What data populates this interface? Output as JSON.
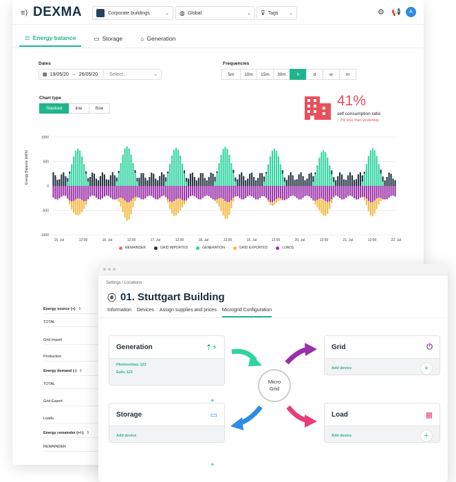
{
  "app": {
    "logo": "DEXMA",
    "menu_glyph": "≡⟩"
  },
  "topbar": {
    "building_select": "Corporate buildings",
    "region_select": "Global",
    "tags_select": "Tags",
    "avatar": "A",
    "icons": [
      "settings-gear-icon",
      "megaphone-icon"
    ]
  },
  "tabs": [
    {
      "label": "Energy balance",
      "icon": "⚖",
      "active": true
    },
    {
      "label": "Storage",
      "icon": "▭",
      "active": false
    },
    {
      "label": "Generation",
      "icon": "⌂",
      "active": false
    }
  ],
  "controls": {
    "dates_label": "Dates",
    "date_from": "19/05/20",
    "date_arrow": "→",
    "date_to": "26/05/20",
    "compare_placeholder": "Select...",
    "frequencies_label": "Frequencies",
    "frequencies": [
      "5m",
      "10m",
      "15m",
      "30m",
      "h",
      "d",
      "w",
      "m"
    ],
    "frequency_selected": "h",
    "chart_type_label": "Chart type",
    "chart_types": [
      "Stacked",
      "line",
      "flow"
    ],
    "chart_type_selected": "Stacked"
  },
  "kpi": {
    "value": "41%",
    "label": "self consumption ratio",
    "delta": "↓ 2% less than yesterday",
    "color": "#e8505b"
  },
  "chart_data": {
    "type": "bar",
    "ylabel": "Energy Balance (kWh)",
    "ylim": [
      -1000,
      1000
    ],
    "yticks": [
      "1000",
      "500",
      "0",
      "-500",
      "-1000"
    ],
    "xticks": [
      "15. Jul",
      "12:00",
      "16. Jul",
      "12:00",
      "17. Jul",
      "12:00",
      "18. Jul",
      "12:00",
      "19. Jul",
      "12:00",
      "20. Jul",
      "12:00",
      "21. Jul",
      "12:00",
      "22. Jul"
    ],
    "grid": true,
    "legend_position": "bottom",
    "hours_per_day": 24,
    "days": 7,
    "series": [
      {
        "name": "REMAINDER",
        "color": "#f06a7a"
      },
      {
        "name": "GRID IMPORTED",
        "color": "#1f2f3e"
      },
      {
        "name": "GENERATION",
        "color": "#2fd39f"
      },
      {
        "name": "GRID EXPORTED",
        "color": "#f5b942"
      },
      {
        "name": "LOADS",
        "color": "#9a2fa8"
      }
    ],
    "daily_peak_generation": [
      760,
      810,
      780,
      800,
      760,
      730,
      770
    ],
    "daily_peak_export": [
      -340,
      -380,
      -330,
      -360,
      -80,
      -330,
      -290
    ],
    "night_grid_import": 280,
    "night_loads": -280
  },
  "table": {
    "rows": [
      {
        "label": "Energy source (+)",
        "head": true,
        "sort": "⇕"
      },
      {
        "label": "TOTAL"
      },
      {
        "label": "Grid import"
      },
      {
        "label": "Production"
      },
      {
        "label": "Energy demand (-)",
        "head": true,
        "sort": "⇕"
      },
      {
        "label": "TOTAL"
      },
      {
        "label": "Grid Export"
      },
      {
        "label": "Loads"
      },
      {
        "label": "Energy remainder (+/-)",
        "head": true,
        "sort": "⇕"
      },
      {
        "label": "REMAINDER"
      }
    ]
  },
  "building": {
    "breadcrumb": "Settings  /  Locations",
    "title": "01. Stuttgart Building",
    "tabs": [
      "Information",
      "Devices",
      "Assign supplies and prices",
      "Microgrid Configuration"
    ],
    "active_tab": "Microgrid Configuration",
    "microgrid_label_1": "Micro",
    "microgrid_label_2": "Grid",
    "cards": {
      "generation": {
        "title": "Generation",
        "items": [
          "Photovoltaic 123",
          "Eolic 123"
        ],
        "icon": "generation-plug-icon"
      },
      "grid": {
        "title": "Grid",
        "add": "Add device",
        "icon": "grid-plug-icon"
      },
      "storage": {
        "title": "Storage",
        "add": "Add device",
        "icon": "battery-icon"
      },
      "load": {
        "title": "Load",
        "add": "Add device",
        "icon": "building-icon"
      }
    },
    "plus": "+",
    "arrow_colors": {
      "generation": "#2fd39f",
      "grid": "#9a2fa8",
      "storage": "#2f8be6",
      "load": "#e83d7a"
    }
  }
}
